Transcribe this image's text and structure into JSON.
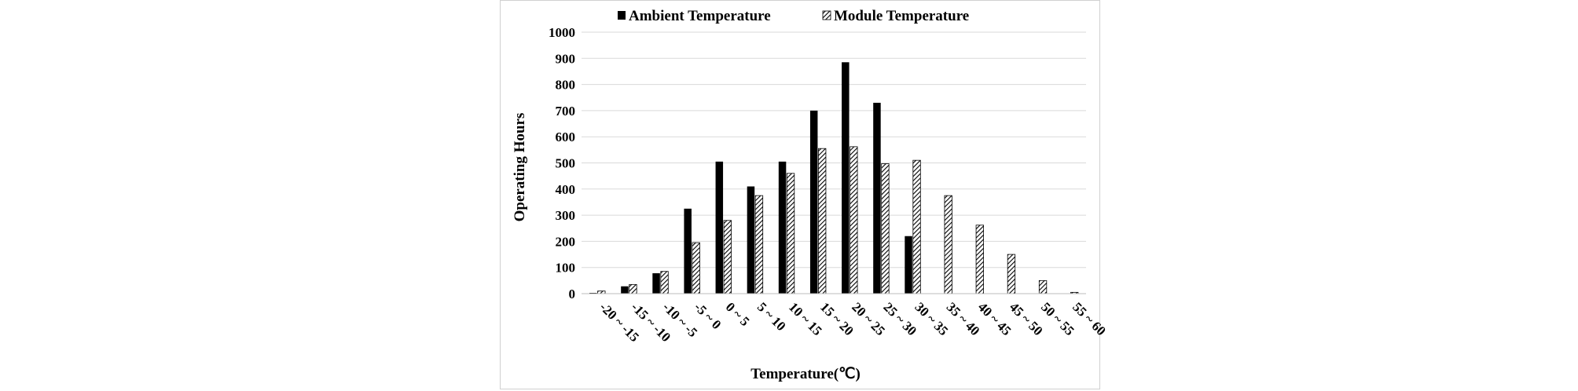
{
  "chart_data": {
    "type": "bar",
    "title": "",
    "xlabel": "Temperature(℃)",
    "ylabel": "Operating Hours",
    "ylim": [
      0,
      1000
    ],
    "yticks": [
      "0",
      "100",
      "200",
      "300",
      "400",
      "500",
      "600",
      "700",
      "800",
      "900",
      "1000"
    ],
    "grid": true,
    "legend_position": "top",
    "categories": [
      "-20 ~ -15",
      "-15 ~ -10",
      "-10 ~ -5",
      "-5 ~ 0",
      "0 ~ 5",
      "5 ~ 10",
      "10 ~ 15",
      "15 ~ 20",
      "20 ~ 25",
      "25 ~ 30",
      "30 ~ 35",
      "35 ~ 40",
      "40 ~ 45",
      "45 ~ 50",
      "50 ~ 55",
      "55 ~ 60"
    ],
    "series": [
      {
        "name": "Ambient Temperature",
        "pattern": "solid",
        "color": "#000000",
        "values": [
          3,
          28,
          78,
          325,
          505,
          410,
          505,
          700,
          885,
          730,
          220,
          0,
          0,
          0,
          0,
          0
        ]
      },
      {
        "name": "Module Temperature",
        "pattern": "hatched",
        "color": "#000000",
        "values": [
          10,
          35,
          85,
          195,
          280,
          375,
          460,
          555,
          562,
          497,
          510,
          375,
          262,
          150,
          50,
          5
        ]
      }
    ]
  }
}
